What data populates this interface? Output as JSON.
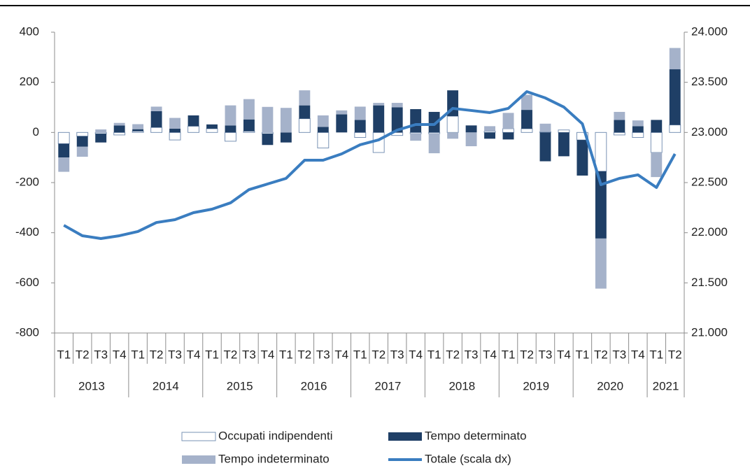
{
  "chart_data": {
    "type": "stacked-bar-line",
    "categories": [
      "T1",
      "T2",
      "T3",
      "T4",
      "T1",
      "T2",
      "T3",
      "T4",
      "T1",
      "T2",
      "T3",
      "T4",
      "T1",
      "T2",
      "T3",
      "T4",
      "T1",
      "T2",
      "T3",
      "T4",
      "T1",
      "T2",
      "T3",
      "T4",
      "T1",
      "T2",
      "T3",
      "T4",
      "T1",
      "T2",
      "T3",
      "T4",
      "T1",
      "T2"
    ],
    "years": [
      "2013",
      "2014",
      "2015",
      "2016",
      "2017",
      "2018",
      "2019",
      "2020",
      "2021"
    ],
    "series": [
      {
        "name": "Occupati indipendenti",
        "color": "#ffffff",
        "values": [
          -45,
          -15,
          -5,
          -10,
          5,
          20,
          -30,
          25,
          15,
          -35,
          5,
          -5,
          0,
          55,
          -62,
          0,
          -20,
          -80,
          -12,
          -5,
          -5,
          65,
          0,
          5,
          15,
          15,
          3,
          10,
          -30,
          -155,
          -10,
          -20,
          -80,
          30
        ]
      },
      {
        "name": "Tempo determinato",
        "color": "#1f3f66",
        "values": [
          -55,
          -42,
          -35,
          28,
          8,
          65,
          15,
          43,
          17,
          28,
          47,
          -45,
          -40,
          53,
          22,
          72,
          50,
          108,
          100,
          93,
          82,
          103,
          28,
          -25,
          -28,
          75,
          -115,
          -95,
          -142,
          -268,
          50,
          25,
          50,
          222
        ]
      },
      {
        "name": "Tempo indeterminato",
        "color": "#a5b2ca",
        "values": [
          -57,
          -40,
          12,
          10,
          20,
          18,
          43,
          0,
          0,
          80,
          81,
          102,
          98,
          60,
          46,
          16,
          53,
          10,
          18,
          -28,
          -78,
          -25,
          -55,
          20,
          63,
          60,
          32,
          0,
          0,
          -200,
          32,
          23,
          -98,
          85
        ]
      },
      {
        "name": "Totale (scala dx)",
        "color": "#3a7dc0",
        "axis": "y2",
        "values": [
          22074,
          21970,
          21942,
          21970,
          22012,
          22102,
          22130,
          22200,
          22235,
          22298,
          22430,
          22486,
          22542,
          22723,
          22723,
          22786,
          22877,
          22926,
          23023,
          23079,
          23079,
          23240,
          23219,
          23198,
          23240,
          23407,
          23344,
          23253,
          23086,
          22479,
          22542,
          22577,
          22451,
          22786
        ]
      }
    ],
    "ylim": [
      -800,
      400
    ],
    "yticks": [
      -800,
      -600,
      -400,
      -200,
      0,
      200,
      400
    ],
    "y2lim": [
      21000,
      24000
    ],
    "y2ticks": [
      {
        "value": 21000,
        "label": "21.000"
      },
      {
        "value": 21500,
        "label": "21.500"
      },
      {
        "value": 22000,
        "label": "22.000"
      },
      {
        "value": 22500,
        "label": "22.500"
      },
      {
        "value": 23000,
        "label": "23.000"
      },
      {
        "value": 23500,
        "label": "23.500"
      },
      {
        "value": 24000,
        "label": "24.000"
      }
    ]
  }
}
